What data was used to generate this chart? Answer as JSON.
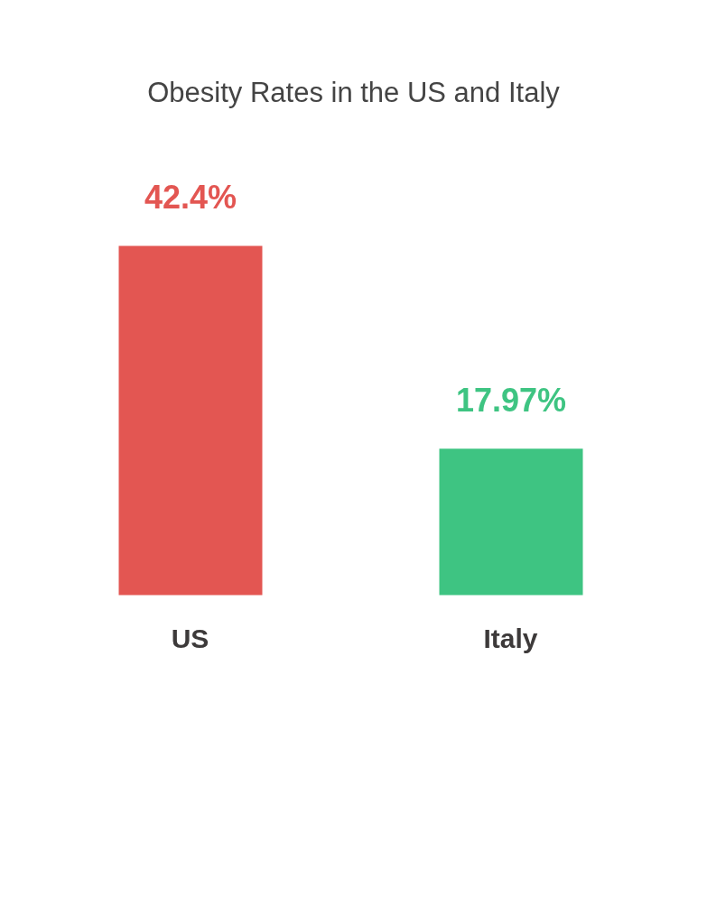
{
  "chart_data": {
    "type": "bar",
    "title": "Obesity Rates in the US and Italy",
    "categories": [
      "US",
      "Italy"
    ],
    "values": [
      42.4,
      17.97
    ],
    "colors": [
      "#e35652",
      "#3ec482"
    ],
    "value_labels": [
      "42.4%",
      "17.97%"
    ]
  }
}
